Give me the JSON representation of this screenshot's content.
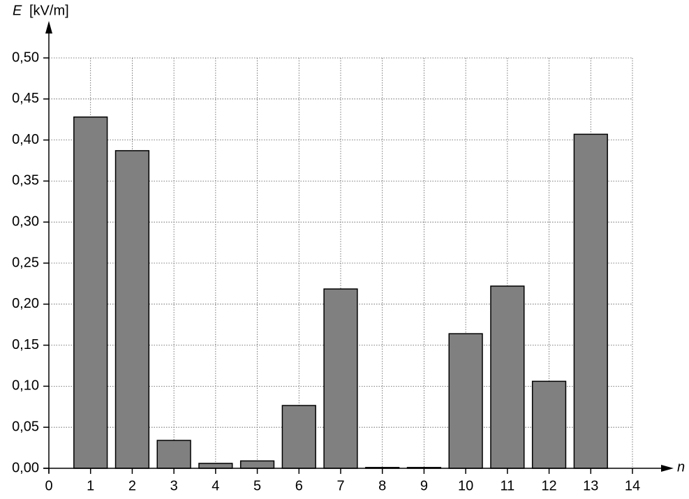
{
  "chart_data": {
    "type": "bar",
    "ylabel_symbol": "E",
    "ylabel_unit": "[kV/m]",
    "xlabel": "n",
    "x": [
      1,
      2,
      3,
      4,
      5,
      6,
      7,
      8,
      9,
      10,
      11,
      12,
      13
    ],
    "values": [
      0.428,
      0.387,
      0.034,
      0.006,
      0.009,
      0.0765,
      0.2185,
      0.001,
      0.001,
      0.164,
      0.222,
      0.106,
      0.407
    ],
    "color": "#808080",
    "xlim": [
      0,
      14
    ],
    "xticks": [
      0,
      1,
      2,
      3,
      4,
      5,
      6,
      7,
      8,
      9,
      10,
      11,
      12,
      13,
      14
    ],
    "ylim": [
      0,
      0.5
    ],
    "yticks": [
      {
        "value": 0,
        "label": "0,00"
      },
      {
        "value": 0.05,
        "label": "0,05"
      },
      {
        "value": 0.1,
        "label": "0,10"
      },
      {
        "value": 0.15,
        "label": "0,15"
      },
      {
        "value": 0.2,
        "label": "0,20"
      },
      {
        "value": 0.25,
        "label": "0,25"
      },
      {
        "value": 0.3,
        "label": "0,30"
      },
      {
        "value": 0.35,
        "label": "0,35"
      },
      {
        "value": 0.4,
        "label": "0,40"
      },
      {
        "value": 0.45,
        "label": "0,45"
      },
      {
        "value": 0.5,
        "label": "0,50"
      }
    ],
    "grid": true
  }
}
